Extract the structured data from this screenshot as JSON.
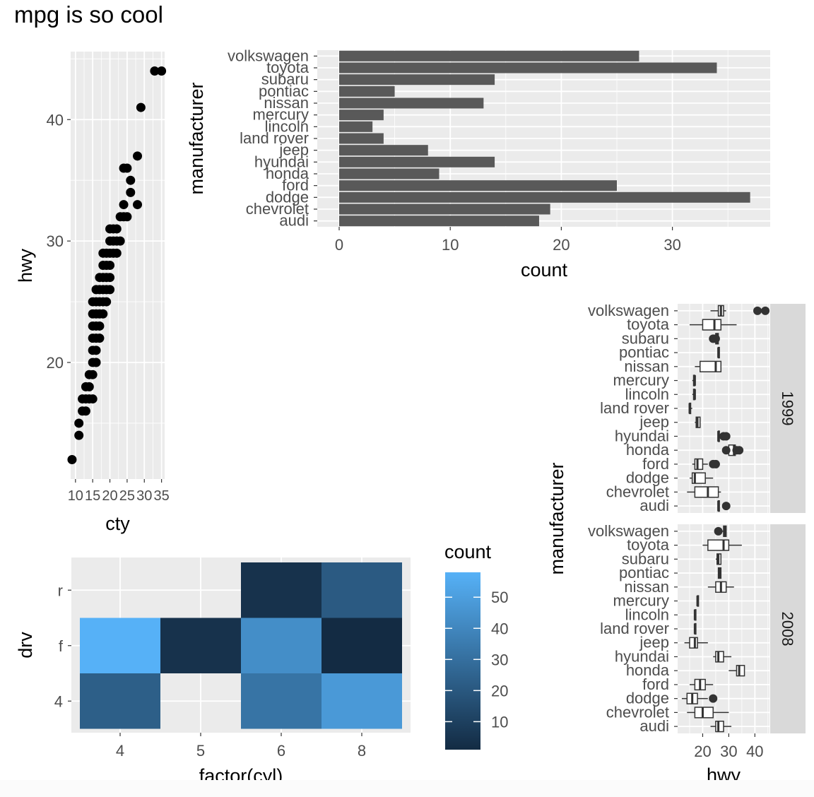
{
  "page_title": "mpg is so cool",
  "colors": {
    "panel_bg": "#ebebeb",
    "grid": "#ffffff",
    "bar_fill": "#595959",
    "point": "#000000",
    "box_line": "#333333",
    "strip_bg": "#d9d9d9",
    "axis_text": "#4d4d4d",
    "title_text": "#000000",
    "scale_low": "#132b43",
    "scale_high": "#56b1f7"
  },
  "chart_data": [
    {
      "id": "scatter",
      "type": "scatter",
      "title": "",
      "xlabel": "cty",
      "ylabel": "hwy",
      "xlim": [
        8.6,
        35.9
      ],
      "ylim": [
        10.4,
        45.6
      ],
      "xticks": [
        10,
        15,
        20,
        25,
        30,
        35
      ],
      "yticks": [
        20,
        30,
        40
      ],
      "xtick_labels": [
        "10",
        "15",
        "20",
        "25",
        "30",
        "35"
      ],
      "ytick_labels": [
        "20",
        "30",
        "40"
      ],
      "points": [
        [
          9,
          12
        ],
        [
          11,
          14
        ],
        [
          11,
          15
        ],
        [
          12,
          16
        ],
        [
          12,
          17
        ],
        [
          13,
          16
        ],
        [
          13,
          17
        ],
        [
          13,
          18
        ],
        [
          14,
          17
        ],
        [
          14,
          18
        ],
        [
          14,
          19
        ],
        [
          15,
          17
        ],
        [
          15,
          19
        ],
        [
          15,
          20
        ],
        [
          15,
          21
        ],
        [
          15,
          22
        ],
        [
          15,
          23
        ],
        [
          15,
          24
        ],
        [
          15,
          25
        ],
        [
          16,
          20
        ],
        [
          16,
          21
        ],
        [
          16,
          22
        ],
        [
          16,
          23
        ],
        [
          16,
          24
        ],
        [
          16,
          25
        ],
        [
          16,
          26
        ],
        [
          17,
          22
        ],
        [
          17,
          23
        ],
        [
          17,
          24
        ],
        [
          17,
          25
        ],
        [
          17,
          26
        ],
        [
          17,
          27
        ],
        [
          18,
          24
        ],
        [
          18,
          25
        ],
        [
          18,
          26
        ],
        [
          18,
          27
        ],
        [
          18,
          28
        ],
        [
          18,
          29
        ],
        [
          19,
          25
        ],
        [
          19,
          26
        ],
        [
          19,
          27
        ],
        [
          19,
          28
        ],
        [
          19,
          29
        ],
        [
          20,
          26
        ],
        [
          20,
          27
        ],
        [
          20,
          28
        ],
        [
          20,
          29
        ],
        [
          20,
          30
        ],
        [
          20,
          31
        ],
        [
          21,
          29
        ],
        [
          21,
          30
        ],
        [
          21,
          31
        ],
        [
          22,
          29
        ],
        [
          22,
          30
        ],
        [
          22,
          31
        ],
        [
          23,
          30
        ],
        [
          23,
          32
        ],
        [
          24,
          32
        ],
        [
          24,
          33
        ],
        [
          24,
          36
        ],
        [
          25,
          32
        ],
        [
          25,
          36
        ],
        [
          26,
          34
        ],
        [
          26,
          35
        ],
        [
          28,
          33
        ],
        [
          28,
          37
        ],
        [
          29,
          41
        ],
        [
          33,
          44
        ],
        [
          35,
          44
        ]
      ]
    },
    {
      "id": "bars",
      "type": "bar",
      "orientation": "horizontal",
      "title": "",
      "xlabel": "count",
      "ylabel": "manufacturer",
      "xlim": [
        0,
        38.85
      ],
      "xticks": [
        0,
        10,
        20,
        30
      ],
      "xtick_labels": [
        "0",
        "10",
        "20",
        "30"
      ],
      "categories": [
        "volkswagen",
        "toyota",
        "subaru",
        "pontiac",
        "nissan",
        "mercury",
        "lincoln",
        "land rover",
        "jeep",
        "hyundai",
        "honda",
        "ford",
        "dodge",
        "chevrolet",
        "audi"
      ],
      "values": [
        27,
        34,
        14,
        5,
        13,
        4,
        3,
        4,
        8,
        14,
        9,
        25,
        37,
        19,
        18
      ]
    },
    {
      "id": "heatmap",
      "type": "heatmap",
      "title": "",
      "xlabel": "factor(cyl)",
      "ylabel": "drv",
      "x_categories": [
        "4",
        "5",
        "6",
        "8"
      ],
      "y_categories": [
        "r",
        "f",
        "4"
      ],
      "cells": [
        {
          "x": "6",
          "y": "r",
          "value": 4
        },
        {
          "x": "8",
          "y": "r",
          "value": 21
        },
        {
          "x": "4",
          "y": "f",
          "value": 58
        },
        {
          "x": "5",
          "y": "f",
          "value": 4
        },
        {
          "x": "6",
          "y": "f",
          "value": 43
        },
        {
          "x": "8",
          "y": "f",
          "value": 1
        },
        {
          "x": "4",
          "y": "4",
          "value": 23
        },
        {
          "x": "6",
          "y": "4",
          "value": 32
        },
        {
          "x": "8",
          "y": "4",
          "value": 48
        }
      ],
      "legend": {
        "title": "count",
        "range": [
          1,
          58
        ],
        "ticks": [
          10,
          20,
          30,
          40,
          50
        ],
        "tick_labels": [
          "10",
          "20",
          "30",
          "40",
          "50"
        ]
      }
    },
    {
      "id": "boxplots",
      "type": "boxplot",
      "orientation": "horizontal",
      "title": "",
      "xlabel": "hwy",
      "ylabel": "manufacturer",
      "xlim": [
        10.4,
        45.6
      ],
      "xticks": [
        20,
        30,
        40
      ],
      "xtick_labels": [
        "20",
        "30",
        "40"
      ],
      "categories": [
        "volkswagen",
        "toyota",
        "subaru",
        "pontiac",
        "nissan",
        "mercury",
        "lincoln",
        "land rover",
        "jeep",
        "hyundai",
        "honda",
        "ford",
        "dodge",
        "chevrolet",
        "audi"
      ],
      "facets": [
        {
          "label": "1999",
          "boxes": [
            {
              "lo": 23,
              "q1": 26,
              "med": 27,
              "q3": 28,
              "hi": 29,
              "outliers": [
                41,
                44
              ]
            },
            {
              "lo": 15,
              "q1": 20,
              "med": 24.5,
              "q3": 27,
              "hi": 33,
              "outliers": []
            },
            {
              "lo": 24,
              "q1": 25,
              "med": 25.5,
              "q3": 26,
              "hi": 26,
              "outliers": [
                24,
                25
              ]
            },
            {
              "lo": 26,
              "q1": 26,
              "med": 26,
              "q3": 26,
              "hi": 26,
              "outliers": []
            },
            {
              "lo": 17,
              "q1": 19,
              "med": 25,
              "q3": 27,
              "hi": 27,
              "outliers": []
            },
            {
              "lo": 16,
              "q1": 16.5,
              "med": 17,
              "q3": 17,
              "hi": 17,
              "outliers": []
            },
            {
              "lo": 16,
              "q1": 16.5,
              "med": 17,
              "q3": 17,
              "hi": 17,
              "outliers": []
            },
            {
              "lo": 15,
              "q1": 15,
              "med": 15,
              "q3": 15,
              "hi": 16,
              "outliers": []
            },
            {
              "lo": 17,
              "q1": 17.5,
              "med": 18,
              "q3": 19,
              "hi": 19,
              "outliers": []
            },
            {
              "lo": 26,
              "q1": 26,
              "med": 26,
              "q3": 26,
              "hi": 26,
              "outliers": [
                28,
                29
              ]
            },
            {
              "lo": 29,
              "q1": 30,
              "med": 32,
              "q3": 32.5,
              "hi": 33,
              "outliers": [
                29,
                33,
                34
              ]
            },
            {
              "lo": 16,
              "q1": 17,
              "med": 18,
              "q3": 20,
              "hi": 22,
              "outliers": [
                24,
                25
              ]
            },
            {
              "lo": 15,
              "q1": 16,
              "med": 17,
              "q3": 21,
              "hi": 24,
              "outliers": []
            },
            {
              "lo": 14,
              "q1": 17,
              "med": 22,
              "q3": 26,
              "hi": 27,
              "outliers": []
            },
            {
              "lo": 26,
              "q1": 26,
              "med": 26,
              "q3": 26,
              "hi": 26,
              "outliers": [
                29
              ]
            }
          ]
        },
        {
          "label": "2008",
          "boxes": [
            {
              "lo": 26,
              "q1": 28,
              "med": 28.5,
              "q3": 29,
              "hi": 29,
              "outliers": [
                26
              ]
            },
            {
              "lo": 20,
              "q1": 22,
              "med": 28,
              "q3": 30,
              "hi": 35,
              "outliers": []
            },
            {
              "lo": 25,
              "q1": 25.5,
              "med": 26,
              "q3": 27,
              "hi": 27,
              "outliers": []
            },
            {
              "lo": 26,
              "q1": 26,
              "med": 26.5,
              "q3": 27,
              "hi": 27,
              "outliers": []
            },
            {
              "lo": 22,
              "q1": 25,
              "med": 27,
              "q3": 29,
              "hi": 32,
              "outliers": []
            },
            {
              "lo": 18,
              "q1": 18,
              "med": 18,
              "q3": 18,
              "hi": 18,
              "outliers": []
            },
            {
              "lo": 17,
              "q1": 17,
              "med": 17,
              "q3": 17,
              "hi": 17,
              "outliers": []
            },
            {
              "lo": 17,
              "q1": 17,
              "med": 17,
              "q3": 17,
              "hi": 17,
              "outliers": []
            },
            {
              "lo": 13,
              "q1": 15,
              "med": 17,
              "q3": 18,
              "hi": 22,
              "outliers": []
            },
            {
              "lo": 24,
              "q1": 25,
              "med": 26,
              "q3": 28,
              "hi": 31,
              "outliers": []
            },
            {
              "lo": 30,
              "q1": 33,
              "med": 34,
              "q3": 36,
              "hi": 36,
              "outliers": []
            },
            {
              "lo": 15,
              "q1": 17,
              "med": 19,
              "q3": 21,
              "hi": 24,
              "outliers": []
            },
            {
              "lo": 12,
              "q1": 14,
              "med": 16,
              "q3": 18,
              "hi": 22,
              "outliers": [
                24
              ]
            },
            {
              "lo": 14,
              "q1": 17,
              "med": 20,
              "q3": 24,
              "hi": 30,
              "outliers": []
            },
            {
              "lo": 23,
              "q1": 25,
              "med": 26,
              "q3": 28,
              "hi": 31,
              "outliers": []
            }
          ]
        }
      ]
    }
  ]
}
